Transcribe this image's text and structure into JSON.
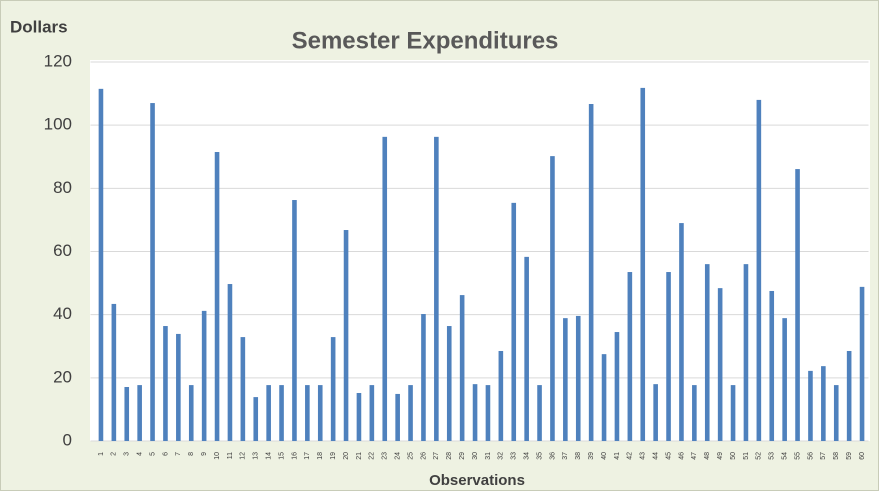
{
  "chart_data": {
    "type": "bar",
    "title": "Semester Expenditures",
    "y_label": "Dollars",
    "x_label": "Observations",
    "categories": [
      "1",
      "2",
      "3",
      "4",
      "5",
      "6",
      "7",
      "8",
      "9",
      "10",
      "11",
      "12",
      "13",
      "14",
      "15",
      "16",
      "17",
      "18",
      "19",
      "20",
      "21",
      "22",
      "23",
      "24",
      "25",
      "26",
      "27",
      "28",
      "29",
      "30",
      "31",
      "32",
      "33",
      "34",
      "35",
      "36",
      "37",
      "38",
      "39",
      "40",
      "41",
      "42",
      "43",
      "44",
      "45",
      "46",
      "47",
      "48",
      "49",
      "50",
      "51",
      "52",
      "53",
      "54",
      "55",
      "56",
      "57",
      "58",
      "59",
      "60"
    ],
    "values": [
      111.5,
      43.4,
      17.1,
      17.7,
      107,
      36.4,
      33.9,
      17.7,
      41.2,
      91.5,
      49.7,
      32.9,
      13.9,
      17.7,
      17.7,
      76.3,
      17.7,
      17.7,
      32.9,
      66.8,
      15.2,
      17.7,
      96.3,
      14.9,
      17.7,
      40.2,
      96.3,
      36.4,
      46.2,
      18,
      17.7,
      28.5,
      75.4,
      58.3,
      17.7,
      90.2,
      38.9,
      39.6,
      106.7,
      27.5,
      34.5,
      53.5,
      111.8,
      18,
      53.5,
      69,
      17.7,
      56,
      48.4,
      17.7,
      56,
      108,
      47.5,
      38.9,
      86.1,
      22.2,
      23.7,
      17.7,
      28.5,
      48.8
    ],
    "color": "#4f81bd",
    "ylim": [
      0,
      120
    ],
    "yticks": [
      0,
      20,
      40,
      60,
      80,
      100,
      120
    ],
    "grid": true
  }
}
